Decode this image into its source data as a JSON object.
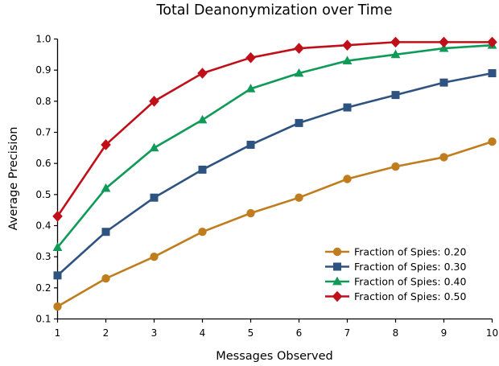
{
  "chart_data": {
    "type": "line",
    "title": "Total Deanonymization over Time",
    "xlabel": "Messages Observed",
    "ylabel": "Average Precision",
    "xlim": [
      1,
      10
    ],
    "ylim": [
      0.1,
      1.0
    ],
    "xticks": [
      1,
      2,
      3,
      4,
      5,
      6,
      7,
      8,
      9,
      10
    ],
    "yticks": [
      0.1,
      0.2,
      0.3,
      0.4,
      0.5,
      0.6,
      0.7,
      0.8,
      0.9,
      1.0
    ],
    "grid": false,
    "legend_position": "lower right",
    "x": [
      1,
      2,
      3,
      4,
      5,
      6,
      7,
      8,
      9,
      10
    ],
    "series": [
      {
        "name": "Fraction of Spies: 0.20",
        "marker": "circle",
        "color": "#bf7d1e",
        "values": [
          0.14,
          0.23,
          0.3,
          0.38,
          0.44,
          0.49,
          0.55,
          0.59,
          0.62,
          0.67
        ]
      },
      {
        "name": "Fraction of Spies: 0.30",
        "marker": "square",
        "color": "#2e5381",
        "values": [
          0.24,
          0.38,
          0.49,
          0.58,
          0.66,
          0.73,
          0.78,
          0.82,
          0.86,
          0.89
        ]
      },
      {
        "name": "Fraction of Spies: 0.40",
        "marker": "triangle",
        "color": "#109a58",
        "values": [
          0.33,
          0.52,
          0.65,
          0.74,
          0.84,
          0.89,
          0.93,
          0.95,
          0.97,
          0.98
        ]
      },
      {
        "name": "Fraction of Spies: 0.50",
        "marker": "diamond",
        "color": "#c00f18",
        "values": [
          0.43,
          0.66,
          0.8,
          0.89,
          0.94,
          0.97,
          0.98,
          0.99,
          0.99,
          0.99
        ]
      }
    ]
  }
}
